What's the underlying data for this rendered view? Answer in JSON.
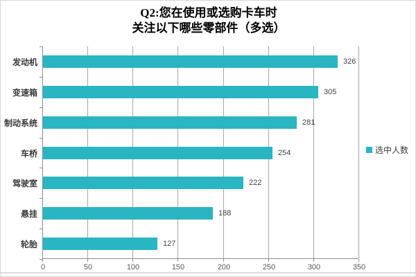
{
  "chart_data": {
    "type": "bar",
    "orientation": "horizontal",
    "title": "Q2:您在使用或选购卡车时 关注以下哪些零部件（多选）",
    "title_lines": [
      "Q2:您在使用或选购卡车时",
      "关注以下哪些零部件（多选）"
    ],
    "categories": [
      "发动机",
      "变速箱",
      "制动系统",
      "车桥",
      "驾驶室",
      "悬挂",
      "轮胎"
    ],
    "values": [
      326,
      305,
      281,
      254,
      222,
      188,
      127
    ],
    "xlabel": "",
    "ylabel": "",
    "xlim": [
      0,
      350
    ],
    "x_ticks": [
      0,
      50,
      100,
      150,
      200,
      250,
      300,
      350
    ],
    "grid": true,
    "legend_position": "right",
    "legend": [
      {
        "label": "选中人数",
        "color": "#2ab5c2"
      }
    ],
    "colors": {
      "bar": "#2ab5c2",
      "grid": "#a6a6a6",
      "axis": "#8c8c8c",
      "title_text": "#000000",
      "category_text": "#3a3a3a",
      "value_text": "#404040",
      "tick_text": "#595959"
    }
  }
}
